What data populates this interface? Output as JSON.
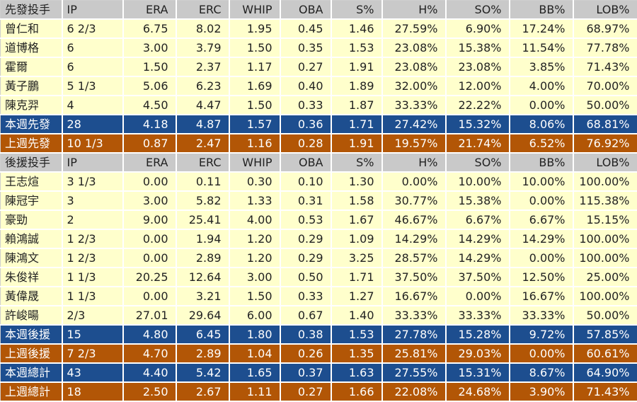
{
  "columns": [
    "IP",
    "ERA",
    "ERC",
    "WHIP",
    "OBA",
    "S%",
    "H%",
    "SO%",
    "BB%",
    "LOB%"
  ],
  "rows": [
    {
      "type": "header",
      "cells": [
        "先發投手",
        "IP",
        "ERA",
        "ERC",
        "WHIP",
        "OBA",
        "S%",
        "H%",
        "SO%",
        "BB%",
        "LOB%"
      ]
    },
    {
      "type": "player",
      "cells": [
        "曾仁和",
        "6 2/3",
        "6.75",
        "8.02",
        "1.95",
        "0.45",
        "1.46",
        "27.59%",
        "6.90%",
        "17.24%",
        "68.97%"
      ]
    },
    {
      "type": "player",
      "cells": [
        "道博格",
        "6",
        "3.00",
        "3.79",
        "1.50",
        "0.35",
        "1.53",
        "23.08%",
        "15.38%",
        "11.54%",
        "77.78%"
      ]
    },
    {
      "type": "player",
      "cells": [
        "霍爾",
        "6",
        "1.50",
        "2.37",
        "1.17",
        "0.27",
        "1.91",
        "23.08%",
        "23.08%",
        "3.85%",
        "71.43%"
      ]
    },
    {
      "type": "player",
      "cells": [
        "黃子鵬",
        "5 1/3",
        "5.06",
        "6.23",
        "1.69",
        "0.40",
        "1.89",
        "32.00%",
        "12.00%",
        "4.00%",
        "70.00%"
      ]
    },
    {
      "type": "player",
      "cells": [
        "陳克羿",
        "4",
        "4.50",
        "4.47",
        "1.50",
        "0.33",
        "1.87",
        "33.33%",
        "22.22%",
        "0.00%",
        "50.00%"
      ]
    },
    {
      "type": "blue",
      "cells": [
        "本週先發",
        "28",
        "4.18",
        "4.87",
        "1.57",
        "0.36",
        "1.71",
        "27.42%",
        "15.32%",
        "8.06%",
        "68.81%"
      ]
    },
    {
      "type": "brown",
      "cells": [
        "上週先發",
        "10 1/3",
        "0.87",
        "2.47",
        "1.16",
        "0.28",
        "1.91",
        "19.57%",
        "21.74%",
        "6.52%",
        "76.92%"
      ]
    },
    {
      "type": "header",
      "cells": [
        "後援投手",
        "IP",
        "ERA",
        "ERC",
        "WHIP",
        "OBA",
        "S%",
        "H%",
        "SO%",
        "BB%",
        "LOB%"
      ]
    },
    {
      "type": "player",
      "cells": [
        "王志煊",
        "3 1/3",
        "0.00",
        "0.11",
        "0.30",
        "0.10",
        "1.30",
        "0.00%",
        "10.00%",
        "10.00%",
        "100.00%"
      ]
    },
    {
      "type": "player",
      "cells": [
        "陳冠宇",
        "3",
        "3.00",
        "5.82",
        "1.33",
        "0.31",
        "1.58",
        "30.77%",
        "15.38%",
        "0.00%",
        "115.38%"
      ]
    },
    {
      "type": "player",
      "cells": [
        "豪勁",
        "2",
        "9.00",
        "25.41",
        "4.00",
        "0.53",
        "1.67",
        "46.67%",
        "6.67%",
        "6.67%",
        "15.15%"
      ]
    },
    {
      "type": "player",
      "cells": [
        "賴鴻誠",
        "1 2/3",
        "0.00",
        "1.94",
        "1.20",
        "0.29",
        "1.09",
        "14.29%",
        "14.29%",
        "14.29%",
        "100.00%"
      ]
    },
    {
      "type": "player",
      "cells": [
        "陳鴻文",
        "1 2/3",
        "0.00",
        "2.89",
        "1.20",
        "0.29",
        "3.25",
        "28.57%",
        "14.29%",
        "0.00%",
        "100.00%"
      ]
    },
    {
      "type": "player",
      "cells": [
        "朱俊祥",
        "1 1/3",
        "20.25",
        "12.64",
        "3.00",
        "0.50",
        "1.71",
        "37.50%",
        "37.50%",
        "12.50%",
        "25.00%"
      ]
    },
    {
      "type": "player",
      "cells": [
        "黃偉晟",
        "1 1/3",
        "0.00",
        "3.21",
        "1.50",
        "0.33",
        "1.27",
        "16.67%",
        "0.00%",
        "16.67%",
        "100.00%"
      ]
    },
    {
      "type": "player",
      "cells": [
        "許峻暘",
        "2/3",
        "27.01",
        "29.64",
        "6.00",
        "0.67",
        "1.40",
        "33.33%",
        "33.33%",
        "33.33%",
        "50.00%"
      ]
    },
    {
      "type": "blue",
      "cells": [
        "本週後援",
        "15",
        "4.80",
        "6.45",
        "1.80",
        "0.38",
        "1.53",
        "27.78%",
        "15.28%",
        "9.72%",
        "57.85%"
      ]
    },
    {
      "type": "brown",
      "cells": [
        "上週後援",
        "7 2/3",
        "4.70",
        "2.89",
        "1.04",
        "0.26",
        "1.35",
        "25.81%",
        "29.03%",
        "0.00%",
        "60.61%"
      ]
    },
    {
      "type": "blue",
      "cells": [
        "本週總計",
        "43",
        "4.40",
        "5.42",
        "1.65",
        "0.37",
        "1.63",
        "27.55%",
        "15.31%",
        "8.67%",
        "64.90%"
      ]
    },
    {
      "type": "brown",
      "cells": [
        "上週總計",
        "18",
        "2.50",
        "2.67",
        "1.11",
        "0.27",
        "1.66",
        "22.08%",
        "24.68%",
        "3.90%",
        "71.43%"
      ]
    }
  ],
  "colors": {
    "header_bg": "#c9c9c9",
    "player_bg": "#ffffcc",
    "this_week_bg": "#1d4e8f",
    "last_week_bg": "#b25606"
  }
}
